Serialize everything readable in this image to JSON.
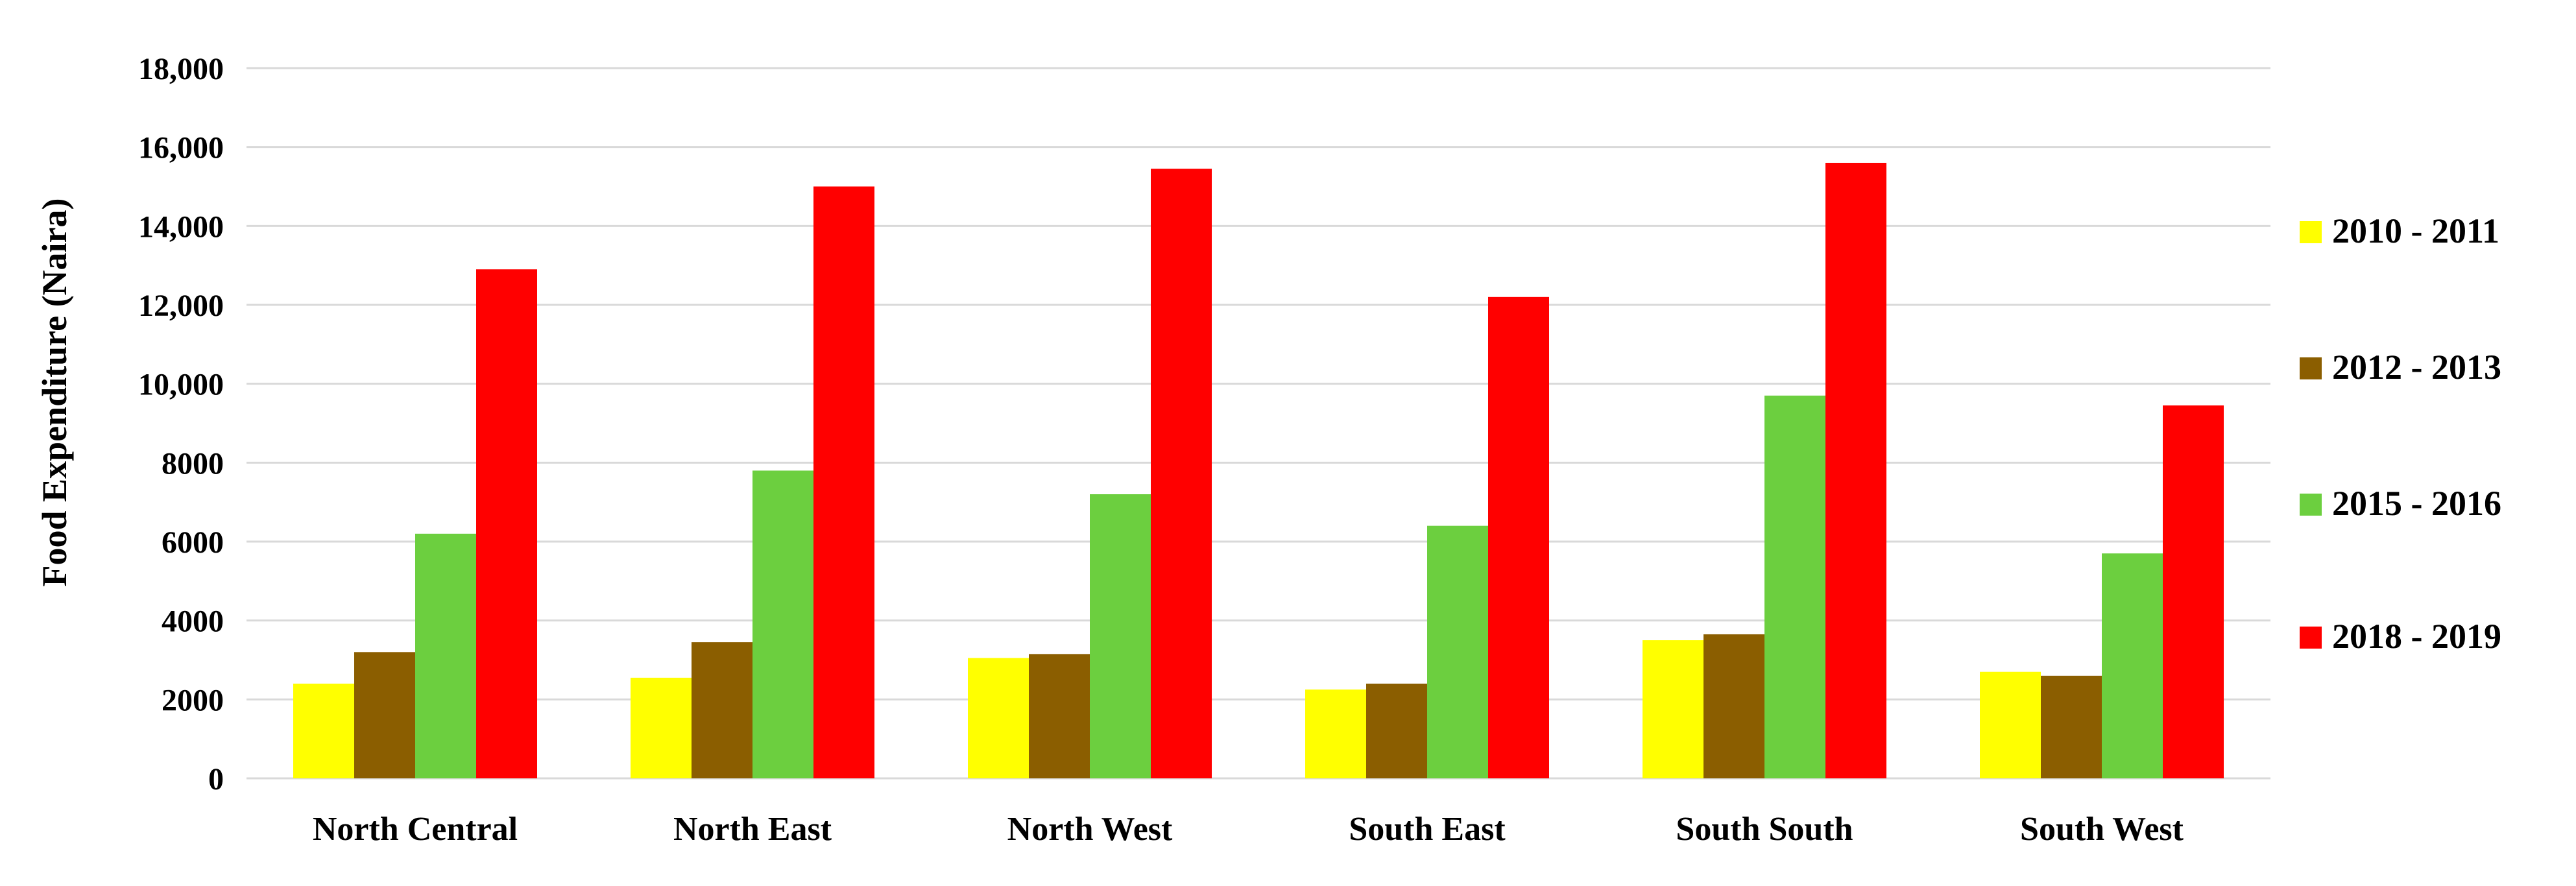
{
  "chart_data": {
    "type": "bar",
    "title": "",
    "xlabel": "",
    "ylabel": "Food Expenditure  (Naira)",
    "ylim": [
      0,
      18000
    ],
    "yticks": [
      0,
      2000,
      4000,
      6000,
      8000,
      10000,
      12000,
      14000,
      16000,
      18000
    ],
    "ytick_labels": [
      "0",
      "2000",
      "4000",
      "6000",
      "8000",
      "10,000",
      "12,000",
      "14,000",
      "16,000",
      "18,000"
    ],
    "grid": true,
    "legend_position": "right",
    "categories": [
      "North Central",
      "North East",
      "North West",
      "South East",
      "South South",
      "South West"
    ],
    "series": [
      {
        "name": "2010 - 2011",
        "color": "#ffff00",
        "values": [
          2400,
          2550,
          3050,
          2250,
          3500,
          2700
        ]
      },
      {
        "name": "2012 - 2013",
        "color": "#8b5e00",
        "values": [
          3200,
          3450,
          3150,
          2400,
          3650,
          2600
        ]
      },
      {
        "name": "2015 - 2016",
        "color": "#6ccf3f",
        "values": [
          6200,
          7800,
          7200,
          6400,
          9700,
          5700
        ]
      },
      {
        "name": "2018 - 2019",
        "color": "#ff0000",
        "values": [
          12900,
          15000,
          15450,
          12200,
          15600,
          9450
        ]
      }
    ]
  }
}
